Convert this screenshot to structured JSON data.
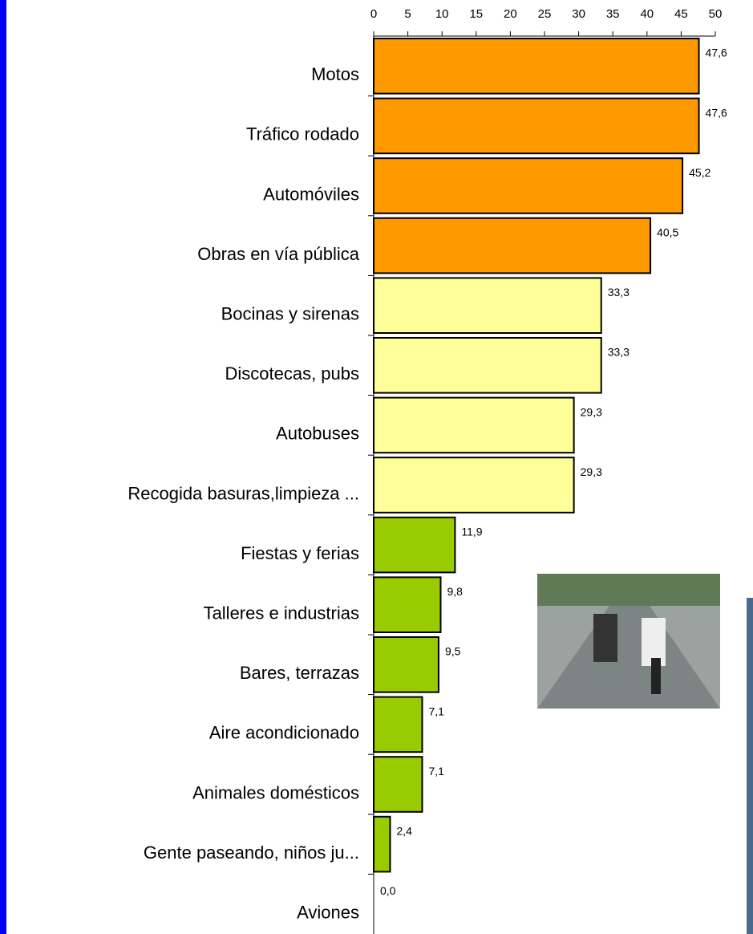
{
  "chart_data": {
    "type": "hbar",
    "categories": [
      "Motos",
      "Tráfico rodado",
      "Automóviles",
      "Obras en vía pública",
      "Bocinas y sirenas",
      "Discotecas, pubs",
      "Autobuses",
      "Recogida basuras,limpieza ...",
      "Fiestas y ferias",
      "Talleres e industrias",
      "Bares, terrazas",
      "Aire acondicionado",
      "Animales domésticos",
      "Gente paseando, niños ju...",
      "Aviones"
    ],
    "values": [
      47.6,
      47.6,
      45.2,
      40.5,
      33.3,
      33.3,
      29.3,
      29.3,
      11.9,
      9.8,
      9.5,
      7.1,
      7.1,
      2.4,
      0.0
    ],
    "value_labels": [
      "47,6",
      "47,6",
      "45,2",
      "40,5",
      "33,3",
      "33,3",
      "29,3",
      "29,3",
      "11,9",
      "9,8",
      "9,5",
      "7,1",
      "7,1",
      "2,4",
      "0,0"
    ],
    "colors": [
      "#ff9900",
      "#ff9900",
      "#ff9900",
      "#ff9900",
      "#ffff99",
      "#ffff99",
      "#ffff99",
      "#ffff99",
      "#99cc00",
      "#99cc00",
      "#99cc00",
      "#99cc00",
      "#99cc00",
      "#99cc00",
      "#99cc00"
    ],
    "xlim": [
      0,
      50
    ],
    "xticks": [
      0,
      5,
      10,
      15,
      20,
      25,
      30,
      35,
      40,
      45,
      50
    ]
  }
}
